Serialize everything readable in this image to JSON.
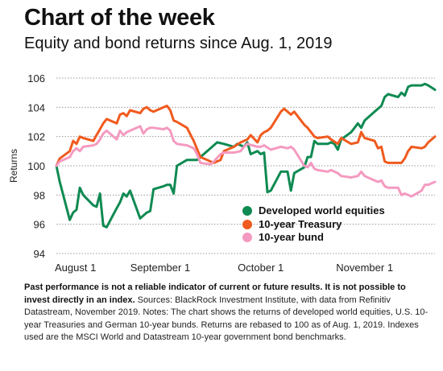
{
  "title": "Chart of the week",
  "subtitle": "Equity and bond returns since Aug. 1, 2019",
  "footnote": {
    "bold": "Past performance is not a reliable indicator of current or future results. It is not possible to invest directly in an index.",
    "text": " Sources: BlackRock Investment Institute, with data from Refinitiv Datastream, November 2019. Notes: The chart shows the returns of developed world equities, U.S. 10-year Treasuries and German 10-year bunds. Returns are rebased to 100 as of Aug. 1, 2019. Indexes used are the MSCI World and Datastream 10-year government bond benchmarks."
  },
  "chart_data": {
    "type": "line",
    "title": "Chart of the week",
    "subtitle": "Equity and bond returns since Aug. 1, 2019",
    "xlabel": "",
    "ylabel": "Returns",
    "ylim": [
      94,
      106
    ],
    "yticks": [
      94,
      96,
      98,
      100,
      102,
      104,
      106
    ],
    "xlim": [
      "2019-08-01",
      "2019-11-22"
    ],
    "xticks": [
      {
        "date": "2019-08-01",
        "label": "August 1"
      },
      {
        "date": "2019-09-01",
        "label": "September 1"
      },
      {
        "date": "2019-10-01",
        "label": "October 1"
      },
      {
        "date": "2019-11-01",
        "label": "November 1"
      }
    ],
    "grid": "horizontal",
    "legend_position": "bottom-right",
    "series": [
      {
        "name": "Developed world equities",
        "color": "#0f8a52",
        "points": [
          [
            "2019-08-01",
            100.0
          ],
          [
            "2019-08-02",
            98.9
          ],
          [
            "2019-08-05",
            96.3
          ],
          [
            "2019-08-06",
            96.8
          ],
          [
            "2019-08-07",
            97.0
          ],
          [
            "2019-08-08",
            98.5
          ],
          [
            "2019-08-09",
            98.0
          ],
          [
            "2019-08-12",
            97.3
          ],
          [
            "2019-08-13",
            97.2
          ],
          [
            "2019-08-14",
            98.1
          ],
          [
            "2019-08-15",
            95.9
          ],
          [
            "2019-08-16",
            95.8
          ],
          [
            "2019-08-19",
            97.1
          ],
          [
            "2019-08-20",
            97.5
          ],
          [
            "2019-08-21",
            98.1
          ],
          [
            "2019-08-22",
            97.9
          ],
          [
            "2019-08-23",
            98.3
          ],
          [
            "2019-08-26",
            96.4
          ],
          [
            "2019-08-27",
            96.6
          ],
          [
            "2019-08-28",
            96.8
          ],
          [
            "2019-08-29",
            96.9
          ],
          [
            "2019-08-30",
            98.4
          ],
          [
            "2019-09-02",
            98.6
          ],
          [
            "2019-09-03",
            98.7
          ],
          [
            "2019-09-04",
            98.7
          ],
          [
            "2019-09-05",
            98.1
          ],
          [
            "2019-09-06",
            100.0
          ],
          [
            "2019-09-09",
            100.4
          ],
          [
            "2019-09-12",
            100.4
          ],
          [
            "2019-09-16",
            101.2
          ],
          [
            "2019-09-18",
            101.6
          ],
          [
            "2019-09-20",
            101.5
          ],
          [
            "2019-09-23",
            101.3
          ],
          [
            "2019-09-24",
            101.5
          ],
          [
            "2019-09-26",
            101.3
          ],
          [
            "2019-09-27",
            101.6
          ],
          [
            "2019-09-28",
            100.8
          ],
          [
            "2019-09-30",
            101.0
          ],
          [
            "2019-10-01",
            100.8
          ],
          [
            "2019-10-02",
            100.9
          ],
          [
            "2019-10-03",
            98.2
          ],
          [
            "2019-10-04",
            98.3
          ],
          [
            "2019-10-07",
            99.6
          ],
          [
            "2019-10-09",
            99.6
          ],
          [
            "2019-10-10",
            98.3
          ],
          [
            "2019-10-11",
            99.5
          ],
          [
            "2019-10-14",
            99.9
          ],
          [
            "2019-10-15",
            100.6
          ],
          [
            "2019-10-16",
            100.6
          ],
          [
            "2019-10-17",
            101.7
          ],
          [
            "2019-10-18",
            101.5
          ],
          [
            "2019-10-21",
            101.5
          ],
          [
            "2019-10-22",
            101.6
          ],
          [
            "2019-10-23",
            101.5
          ],
          [
            "2019-10-24",
            101.1
          ],
          [
            "2019-10-25",
            101.8
          ],
          [
            "2019-10-28",
            102.3
          ],
          [
            "2019-10-29",
            102.6
          ],
          [
            "2019-10-30",
            102.9
          ],
          [
            "2019-10-31",
            102.6
          ],
          [
            "2019-11-01",
            103.1
          ],
          [
            "2019-11-04",
            103.7
          ],
          [
            "2019-11-05",
            103.9
          ],
          [
            "2019-11-06",
            104.1
          ],
          [
            "2019-11-07",
            104.7
          ],
          [
            "2019-11-08",
            104.9
          ],
          [
            "2019-11-11",
            104.7
          ],
          [
            "2019-11-12",
            105.0
          ],
          [
            "2019-11-13",
            104.8
          ],
          [
            "2019-11-14",
            105.4
          ],
          [
            "2019-11-15",
            105.5
          ],
          [
            "2019-11-18",
            105.5
          ],
          [
            "2019-11-19",
            105.6
          ],
          [
            "2019-11-20",
            105.5
          ],
          [
            "2019-11-22",
            105.2
          ]
        ]
      },
      {
        "name": "10-year Treasury",
        "color": "#f05a1e",
        "points": [
          [
            "2019-08-01",
            100.0
          ],
          [
            "2019-08-02",
            100.5
          ],
          [
            "2019-08-05",
            101.0
          ],
          [
            "2019-08-06",
            101.7
          ],
          [
            "2019-08-07",
            101.5
          ],
          [
            "2019-08-08",
            102.0
          ],
          [
            "2019-08-09",
            101.9
          ],
          [
            "2019-08-12",
            101.7
          ],
          [
            "2019-08-13",
            102.1
          ],
          [
            "2019-08-14",
            102.5
          ],
          [
            "2019-08-15",
            102.9
          ],
          [
            "2019-08-16",
            103.2
          ],
          [
            "2019-08-19",
            102.9
          ],
          [
            "2019-08-20",
            103.5
          ],
          [
            "2019-08-21",
            103.6
          ],
          [
            "2019-08-22",
            103.4
          ],
          [
            "2019-08-23",
            103.8
          ],
          [
            "2019-08-26",
            103.6
          ],
          [
            "2019-08-27",
            103.9
          ],
          [
            "2019-08-28",
            104.0
          ],
          [
            "2019-08-29",
            103.8
          ],
          [
            "2019-08-30",
            103.7
          ],
          [
            "2019-09-02",
            104.0
          ],
          [
            "2019-09-03",
            104.1
          ],
          [
            "2019-09-04",
            103.8
          ],
          [
            "2019-09-05",
            103.1
          ],
          [
            "2019-09-06",
            103.0
          ],
          [
            "2019-09-09",
            102.6
          ],
          [
            "2019-09-11",
            101.7
          ],
          [
            "2019-09-13",
            100.6
          ],
          [
            "2019-09-16",
            100.3
          ],
          [
            "2019-09-17",
            100.2
          ],
          [
            "2019-09-19",
            100.4
          ],
          [
            "2019-09-20",
            101.0
          ],
          [
            "2019-09-23",
            101.3
          ],
          [
            "2019-09-25",
            101.6
          ],
          [
            "2019-09-27",
            101.8
          ],
          [
            "2019-09-28",
            102.1
          ],
          [
            "2019-09-30",
            101.6
          ],
          [
            "2019-10-01",
            102.1
          ],
          [
            "2019-10-02",
            102.3
          ],
          [
            "2019-10-03",
            102.4
          ],
          [
            "2019-10-04",
            102.6
          ],
          [
            "2019-10-07",
            103.7
          ],
          [
            "2019-10-08",
            103.9
          ],
          [
            "2019-10-09",
            103.7
          ],
          [
            "2019-10-10",
            103.5
          ],
          [
            "2019-10-11",
            103.7
          ],
          [
            "2019-10-14",
            102.8
          ],
          [
            "2019-10-15",
            102.6
          ],
          [
            "2019-10-16",
            102.3
          ],
          [
            "2019-10-17",
            102.0
          ],
          [
            "2019-10-18",
            101.9
          ],
          [
            "2019-10-21",
            102.0
          ],
          [
            "2019-10-22",
            101.8
          ],
          [
            "2019-10-24",
            101.5
          ],
          [
            "2019-10-25",
            101.9
          ],
          [
            "2019-10-28",
            101.5
          ],
          [
            "2019-10-30",
            101.6
          ],
          [
            "2019-10-31",
            102.3
          ],
          [
            "2019-11-01",
            101.9
          ],
          [
            "2019-11-04",
            101.7
          ],
          [
            "2019-11-05",
            101.2
          ],
          [
            "2019-11-06",
            101.3
          ],
          [
            "2019-11-07",
            100.3
          ],
          [
            "2019-11-08",
            100.2
          ],
          [
            "2019-11-11",
            100.2
          ],
          [
            "2019-11-12",
            100.2
          ],
          [
            "2019-11-13",
            100.5
          ],
          [
            "2019-11-14",
            101.0
          ],
          [
            "2019-11-15",
            101.3
          ],
          [
            "2019-11-18",
            101.2
          ],
          [
            "2019-11-19",
            101.3
          ],
          [
            "2019-11-20",
            101.6
          ],
          [
            "2019-11-22",
            102.0
          ]
        ]
      },
      {
        "name": "10-year bund",
        "color": "#f49ac0",
        "points": [
          [
            "2019-08-01",
            100.0
          ],
          [
            "2019-08-02",
            100.3
          ],
          [
            "2019-08-05",
            100.6
          ],
          [
            "2019-08-06",
            101.0
          ],
          [
            "2019-08-07",
            101.2
          ],
          [
            "2019-08-08",
            101.0
          ],
          [
            "2019-08-09",
            101.3
          ],
          [
            "2019-08-12",
            101.4
          ],
          [
            "2019-08-13",
            101.5
          ],
          [
            "2019-08-14",
            101.8
          ],
          [
            "2019-08-15",
            102.2
          ],
          [
            "2019-08-16",
            102.4
          ],
          [
            "2019-08-19",
            101.8
          ],
          [
            "2019-08-20",
            102.4
          ],
          [
            "2019-08-21",
            102.1
          ],
          [
            "2019-08-22",
            102.3
          ],
          [
            "2019-08-23",
            102.4
          ],
          [
            "2019-08-26",
            102.7
          ],
          [
            "2019-08-27",
            102.2
          ],
          [
            "2019-08-28",
            102.5
          ],
          [
            "2019-08-29",
            102.6
          ],
          [
            "2019-08-30",
            102.6
          ],
          [
            "2019-09-02",
            102.5
          ],
          [
            "2019-09-03",
            102.6
          ],
          [
            "2019-09-04",
            102.4
          ],
          [
            "2019-09-05",
            101.7
          ],
          [
            "2019-09-06",
            101.5
          ],
          [
            "2019-09-09",
            101.4
          ],
          [
            "2019-09-11",
            101.2
          ],
          [
            "2019-09-12",
            100.8
          ],
          [
            "2019-09-13",
            100.2
          ],
          [
            "2019-09-16",
            100.1
          ],
          [
            "2019-09-17",
            100.3
          ],
          [
            "2019-09-19",
            100.8
          ],
          [
            "2019-09-20",
            100.9
          ],
          [
            "2019-09-23",
            100.9
          ],
          [
            "2019-09-25",
            101.0
          ],
          [
            "2019-09-26",
            101.3
          ],
          [
            "2019-09-27",
            101.5
          ],
          [
            "2019-09-30",
            101.3
          ],
          [
            "2019-10-01",
            101.3
          ],
          [
            "2019-10-02",
            101.4
          ],
          [
            "2019-10-04",
            101.1
          ],
          [
            "2019-10-07",
            101.3
          ],
          [
            "2019-10-09",
            101.2
          ],
          [
            "2019-10-10",
            101.3
          ],
          [
            "2019-10-11",
            101.1
          ],
          [
            "2019-10-14",
            100.0
          ],
          [
            "2019-10-15",
            99.9
          ],
          [
            "2019-10-16",
            100.2
          ],
          [
            "2019-10-17",
            99.8
          ],
          [
            "2019-10-18",
            99.7
          ],
          [
            "2019-10-21",
            99.6
          ],
          [
            "2019-10-22",
            99.7
          ],
          [
            "2019-10-24",
            99.5
          ],
          [
            "2019-10-25",
            99.3
          ],
          [
            "2019-10-28",
            99.2
          ],
          [
            "2019-10-30",
            99.3
          ],
          [
            "2019-10-31",
            99.6
          ],
          [
            "2019-11-01",
            99.3
          ],
          [
            "2019-11-04",
            99.0
          ],
          [
            "2019-11-05",
            98.9
          ],
          [
            "2019-11-06",
            99.0
          ],
          [
            "2019-11-07",
            98.6
          ],
          [
            "2019-11-08",
            98.5
          ],
          [
            "2019-11-11",
            98.5
          ],
          [
            "2019-11-12",
            98.0
          ],
          [
            "2019-11-13",
            98.1
          ],
          [
            "2019-11-14",
            98.0
          ],
          [
            "2019-11-15",
            97.9
          ],
          [
            "2019-11-18",
            98.3
          ],
          [
            "2019-11-19",
            98.7
          ],
          [
            "2019-11-20",
            98.7
          ],
          [
            "2019-11-21",
            98.8
          ],
          [
            "2019-11-22",
            98.9
          ]
        ]
      }
    ]
  }
}
